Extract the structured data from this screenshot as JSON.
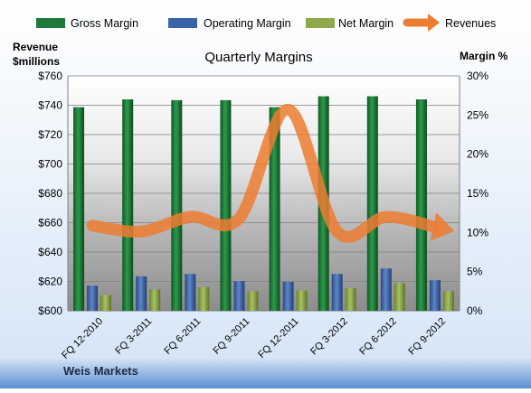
{
  "chart_data": {
    "type": "bar",
    "title": "Quarterly Margins",
    "company": "Weis Markets",
    "left_axis": {
      "label_line1": "Revenue",
      "label_line2": "$millions",
      "min": 600,
      "max": 760,
      "step": 20,
      "tick_labels": [
        "$600",
        "$620",
        "$640",
        "$660",
        "$680",
        "$700",
        "$720",
        "$740",
        "$760"
      ]
    },
    "right_axis": {
      "label": "Margin %",
      "min": 0,
      "max": 30,
      "step": 5,
      "tick_labels": [
        "0%",
        "5%",
        "10%",
        "15%",
        "20%",
        "25%",
        "30%"
      ]
    },
    "categories": [
      "FQ 12-2010",
      "FQ 3-2011",
      "FQ 6-2011",
      "FQ 9-2011",
      "FQ 12-2011",
      "FQ 3-2012",
      "FQ 6-2012",
      "FQ 9-2012"
    ],
    "series": [
      {
        "name": "Gross Margin",
        "axis": "right",
        "kind": "bar",
        "color": "#1e7a3a",
        "values": [
          26,
          27,
          26.9,
          26.9,
          26,
          27.4,
          27.4,
          27
        ]
      },
      {
        "name": "Operating Margin",
        "axis": "right",
        "kind": "bar",
        "color": "#3a62a8",
        "values": [
          3.2,
          4.4,
          4.7,
          3.8,
          3.7,
          4.7,
          5.4,
          3.9
        ]
      },
      {
        "name": "Net Margin",
        "axis": "right",
        "kind": "bar",
        "color": "#8ea84a",
        "values": [
          2.0,
          2.7,
          3.0,
          2.5,
          2.6,
          2.9,
          3.5,
          2.5
        ]
      },
      {
        "name": "Revenues",
        "axis": "left",
        "kind": "line",
        "color": "#ed7d31",
        "values": [
          658,
          654,
          664,
          663,
          737,
          654,
          664,
          657
        ]
      }
    ]
  }
}
